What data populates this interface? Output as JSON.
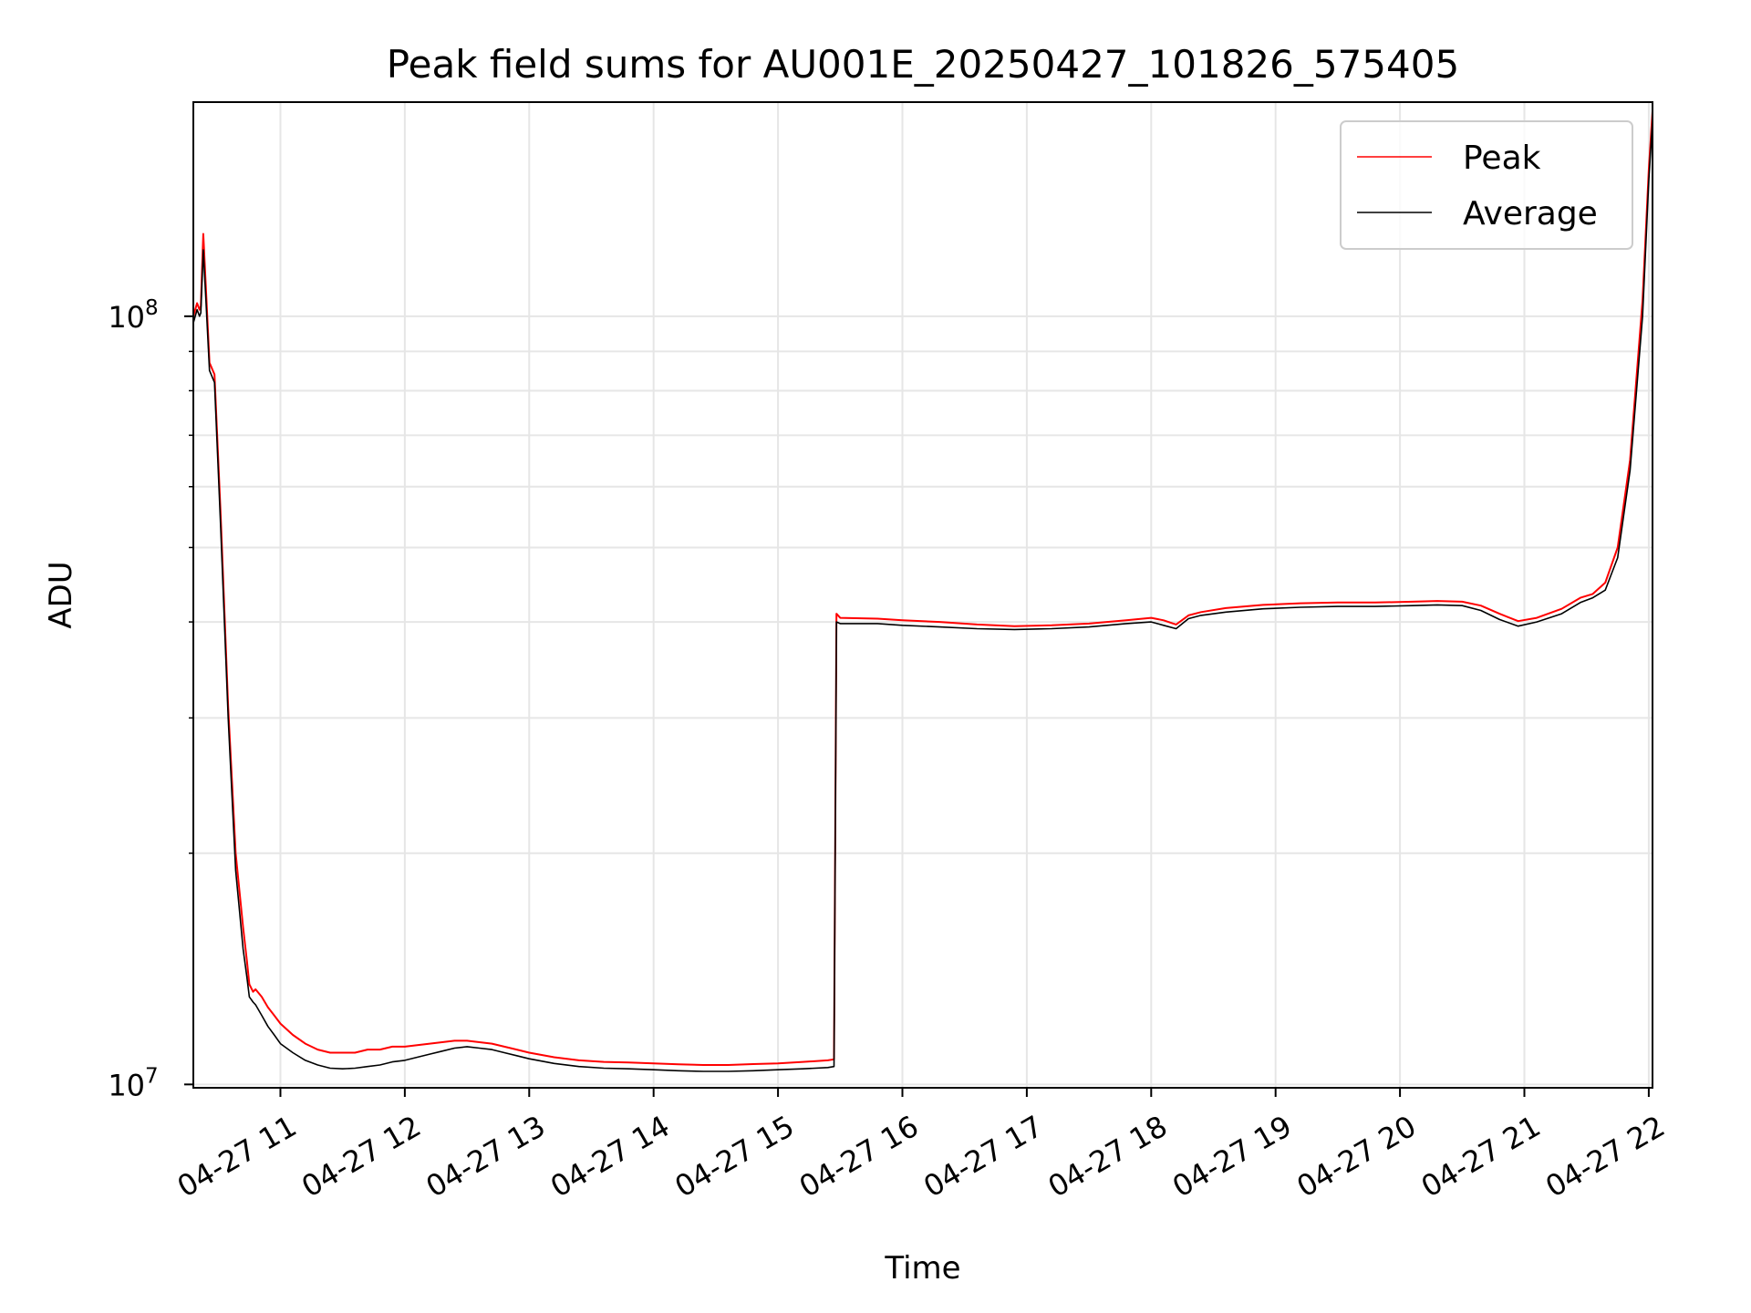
{
  "chart_data": {
    "type": "line",
    "title": "Peak field sums for AU001E_20250427_101826_575405",
    "xlabel": "Time",
    "ylabel": "ADU",
    "x_unit": "hours of 2025-04-27",
    "xlim": [
      10.3,
      22.03
    ],
    "ylim": [
      9900000,
      190000000
    ],
    "yscale": "log",
    "grid": true,
    "legend_position": "top-right",
    "x_ticks": [
      {
        "value": 11,
        "label": "04-27 11"
      },
      {
        "value": 12,
        "label": "04-27 12"
      },
      {
        "value": 13,
        "label": "04-27 13"
      },
      {
        "value": 14,
        "label": "04-27 14"
      },
      {
        "value": 15,
        "label": "04-27 15"
      },
      {
        "value": 16,
        "label": "04-27 16"
      },
      {
        "value": 17,
        "label": "04-27 17"
      },
      {
        "value": 18,
        "label": "04-27 18"
      },
      {
        "value": 19,
        "label": "04-27 19"
      },
      {
        "value": 20,
        "label": "04-27 20"
      },
      {
        "value": 21,
        "label": "04-27 21"
      },
      {
        "value": 22,
        "label": "04-27 22"
      }
    ],
    "y_ticks": [
      {
        "value": 10000000,
        "base": "10",
        "exp": "7"
      },
      {
        "value": 100000000,
        "base": "10",
        "exp": "8"
      }
    ],
    "series": [
      {
        "name": "Peak",
        "color": "#ff0000",
        "x": [
          10.3,
          10.33,
          10.35,
          10.36,
          10.38,
          10.4,
          10.43,
          10.47,
          10.52,
          10.58,
          10.64,
          10.7,
          10.73,
          10.75,
          10.78,
          10.8,
          10.85,
          10.9,
          10.95,
          11.0,
          11.1,
          11.2,
          11.3,
          11.4,
          11.5,
          11.6,
          11.7,
          11.8,
          11.9,
          12.0,
          12.1,
          12.2,
          12.3,
          12.4,
          12.5,
          12.6,
          12.7,
          12.8,
          12.9,
          13.0,
          13.2,
          13.4,
          13.6,
          13.8,
          14.0,
          14.2,
          14.4,
          14.6,
          14.8,
          15.0,
          15.2,
          15.4,
          15.45,
          15.47,
          15.5,
          15.8,
          16.0,
          16.3,
          16.6,
          16.9,
          17.2,
          17.5,
          17.8,
          18.0,
          18.1,
          18.2,
          18.3,
          18.4,
          18.6,
          18.9,
          19.2,
          19.5,
          19.8,
          20.1,
          20.3,
          20.5,
          20.65,
          20.8,
          20.95,
          21.1,
          21.3,
          21.45,
          21.55,
          21.65,
          21.75,
          21.85,
          21.95,
          22.0,
          22.03
        ],
        "y": [
          100000000,
          104000000,
          102000000,
          103000000,
          128000000,
          110000000,
          87000000,
          84000000,
          55000000,
          31000000,
          20000000,
          16000000,
          14500000,
          13500000,
          13200000,
          13300000,
          13000000,
          12600000,
          12300000,
          12000000,
          11600000,
          11300000,
          11100000,
          11000000,
          11000000,
          11000000,
          11100000,
          11100000,
          11200000,
          11200000,
          11250000,
          11300000,
          11350000,
          11400000,
          11400000,
          11350000,
          11300000,
          11200000,
          11100000,
          11000000,
          10850000,
          10750000,
          10700000,
          10680000,
          10650000,
          10620000,
          10600000,
          10600000,
          10630000,
          10650000,
          10700000,
          10750000,
          10780000,
          41000000,
          40500000,
          40400000,
          40200000,
          40000000,
          39700000,
          39500000,
          39600000,
          39800000,
          40200000,
          40500000,
          40200000,
          39700000,
          40800000,
          41200000,
          41700000,
          42100000,
          42300000,
          42400000,
          42400000,
          42500000,
          42600000,
          42500000,
          42000000,
          41000000,
          40100000,
          40500000,
          41600000,
          43000000,
          43500000,
          45000000,
          50000000,
          65000000,
          105000000,
          155000000,
          185000000
        ]
      },
      {
        "name": "Average",
        "color": "#000000",
        "x": [
          10.3,
          10.33,
          10.35,
          10.36,
          10.38,
          10.4,
          10.43,
          10.47,
          10.52,
          10.58,
          10.64,
          10.7,
          10.73,
          10.75,
          10.78,
          10.8,
          10.85,
          10.9,
          10.95,
          11.0,
          11.1,
          11.2,
          11.3,
          11.4,
          11.5,
          11.6,
          11.7,
          11.8,
          11.9,
          12.0,
          12.1,
          12.2,
          12.3,
          12.4,
          12.5,
          12.6,
          12.7,
          12.8,
          12.9,
          13.0,
          13.2,
          13.4,
          13.6,
          13.8,
          14.0,
          14.2,
          14.4,
          14.6,
          14.8,
          15.0,
          15.2,
          15.4,
          15.45,
          15.47,
          15.5,
          15.8,
          16.0,
          16.3,
          16.6,
          16.9,
          17.2,
          17.5,
          17.8,
          18.0,
          18.1,
          18.2,
          18.3,
          18.4,
          18.6,
          18.9,
          19.2,
          19.5,
          19.8,
          20.1,
          20.3,
          20.5,
          20.65,
          20.8,
          20.95,
          21.1,
          21.3,
          21.45,
          21.55,
          21.65,
          21.75,
          21.85,
          21.95,
          22.0,
          22.03
        ],
        "y": [
          98000000,
          102000000,
          100000000,
          101000000,
          122000000,
          106000000,
          85000000,
          82000000,
          53000000,
          30000000,
          19000000,
          15000000,
          13800000,
          13000000,
          12800000,
          12700000,
          12300000,
          11900000,
          11600000,
          11300000,
          11000000,
          10750000,
          10600000,
          10500000,
          10480000,
          10500000,
          10550000,
          10600000,
          10700000,
          10750000,
          10850000,
          10950000,
          11050000,
          11150000,
          11200000,
          11150000,
          11100000,
          11000000,
          10900000,
          10800000,
          10650000,
          10550000,
          10500000,
          10480000,
          10450000,
          10420000,
          10400000,
          10400000,
          10420000,
          10450000,
          10480000,
          10520000,
          10550000,
          40000000,
          39800000,
          39800000,
          39600000,
          39400000,
          39200000,
          39100000,
          39200000,
          39400000,
          39800000,
          40000000,
          39600000,
          39200000,
          40400000,
          40800000,
          41200000,
          41600000,
          41800000,
          41900000,
          41900000,
          42000000,
          42100000,
          42000000,
          41400000,
          40300000,
          39500000,
          40000000,
          41000000,
          42400000,
          43000000,
          44000000,
          48500000,
          63000000,
          100000000,
          150000000,
          180000000
        ]
      }
    ]
  }
}
